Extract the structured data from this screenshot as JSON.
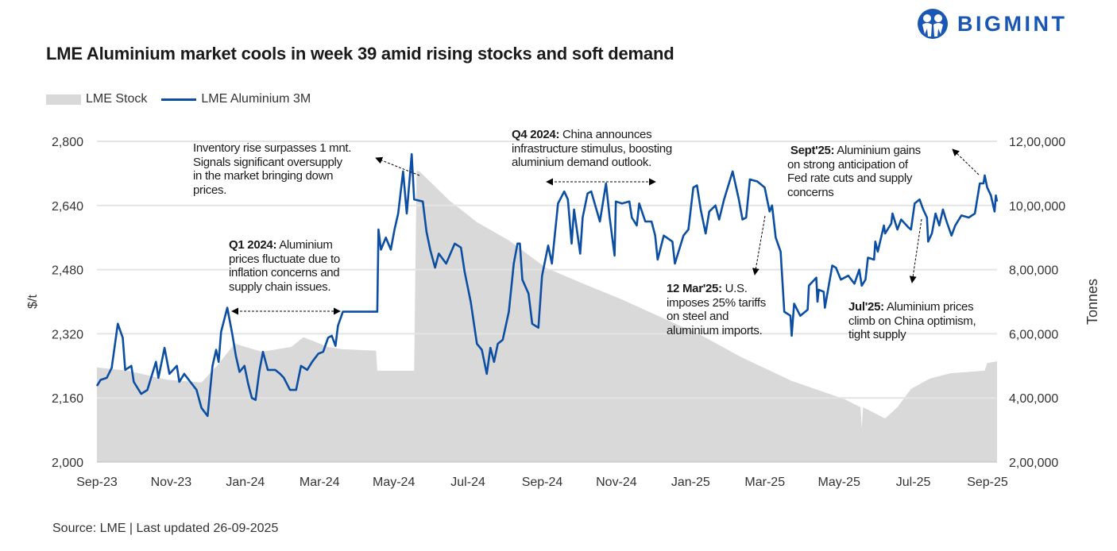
{
  "header": {
    "title": "LME Aluminium market cools in week 39 amid rising stocks and soft demand",
    "logo_text": "BIGMINT"
  },
  "footer": {
    "source": "Source: LME | Last updated 26-09-2025"
  },
  "colors": {
    "price_line": "#0b4ea2",
    "stock_area": "#d9d9d9",
    "grid": "#e4e4e4",
    "brand": "#1a56b4"
  },
  "annotations": [
    {
      "bold": "",
      "text": [
        "Inventory rise surpasses 1 mnt.",
        "Signals significant oversupply",
        "in the market bringing down",
        "prices."
      ]
    },
    {
      "bold": "Q1 2024:",
      "text": [
        " Aluminium",
        "prices fluctuate due to",
        "inflation concerns and",
        "supply chain issues."
      ]
    },
    {
      "bold": "Q4 2024:",
      "text": [
        " China announces",
        "infrastructure stimulus, boosting",
        "aluminium demand outlook."
      ]
    },
    {
      "bold": "12 Mar'25:",
      "text": [
        " U.S.",
        "imposes 25% tariffs",
        "on steel and",
        "aluminium imports."
      ]
    },
    {
      "bold": "Sept'25:",
      "text": [
        " Aluminium gains",
        "on strong anticipation of",
        "Fed rate cuts and supply",
        "concerns"
      ]
    },
    {
      "bold": "Jul'25:",
      "text": [
        " Aluminium prices",
        "climb on China optimism,",
        "tight supply"
      ]
    }
  ],
  "chart_data": {
    "type": "line+area",
    "title": "LME Aluminium market cools in week 39 amid rising stocks and soft demand",
    "legend": {
      "position": "top-left",
      "entries": [
        "LME Stock",
        "LME Aluminium 3M"
      ]
    },
    "grid": true,
    "x_tick_labels": [
      "Sep-23",
      "Nov-23",
      "Jan-24",
      "Mar-24",
      "May-24",
      "Jul-24",
      "Sep-24",
      "Nov-24",
      "Jan-25",
      "Mar-25",
      "May-25",
      "Jul-25",
      "Sep-25"
    ],
    "y_left": {
      "label": "$/t",
      "range": [
        2000,
        2800
      ],
      "ticks": [
        "2,000",
        "2,160",
        "2,320",
        "2,480",
        "2,640",
        "2,800"
      ]
    },
    "y_right": {
      "label": "Tonnes",
      "range": [
        200000,
        1200000
      ],
      "ticks": [
        "2,00,000",
        "4,00,000",
        "6,00,000",
        "8,00,000",
        "10,00,000",
        "12,00,000"
      ]
    },
    "series": [
      {
        "name": "LME Aluminium 3M",
        "axis": "left",
        "kind": "line",
        "points": [
          [
            "2023-09-25",
            2190
          ],
          [
            "2023-09-28",
            2205
          ],
          [
            "2023-10-03",
            2210
          ],
          [
            "2023-10-07",
            2235
          ],
          [
            "2023-10-12",
            2345
          ],
          [
            "2023-10-16",
            2310
          ],
          [
            "2023-10-18",
            2230
          ],
          [
            "2023-10-23",
            2240
          ],
          [
            "2023-10-25",
            2200
          ],
          [
            "2023-10-31",
            2170
          ],
          [
            "2023-11-05",
            2180
          ],
          [
            "2023-11-12",
            2250
          ],
          [
            "2023-11-14",
            2210
          ],
          [
            "2023-11-19",
            2285
          ],
          [
            "2023-11-23",
            2220
          ],
          [
            "2023-11-29",
            2240
          ],
          [
            "2023-12-01",
            2200
          ],
          [
            "2023-12-05",
            2220
          ],
          [
            "2023-12-10",
            2200
          ],
          [
            "2023-12-15",
            2180
          ],
          [
            "2023-12-19",
            2135
          ],
          [
            "2023-12-24",
            2115
          ],
          [
            "2023-12-28",
            2240
          ],
          [
            "2023-12-31",
            2280
          ],
          [
            "2024-01-02",
            2250
          ],
          [
            "2024-01-04",
            2325
          ],
          [
            "2024-01-09",
            2385
          ],
          [
            "2024-01-13",
            2320
          ],
          [
            "2024-01-16",
            2265
          ],
          [
            "2024-01-19",
            2225
          ],
          [
            "2024-01-23",
            2240
          ],
          [
            "2024-01-26",
            2195
          ],
          [
            "2024-01-29",
            2160
          ],
          [
            "2024-02-01",
            2155
          ],
          [
            "2024-02-04",
            2225
          ],
          [
            "2024-02-07",
            2275
          ],
          [
            "2024-02-11",
            2230
          ],
          [
            "2024-02-17",
            2230
          ],
          [
            "2024-02-21",
            2220
          ],
          [
            "2024-02-24",
            2210
          ],
          [
            "2024-02-29",
            2180
          ],
          [
            "2024-03-05",
            2180
          ],
          [
            "2024-03-09",
            2240
          ],
          [
            "2024-03-14",
            2230
          ],
          [
            "2024-03-18",
            2250
          ],
          [
            "2024-03-23",
            2270
          ],
          [
            "2024-03-27",
            2275
          ],
          [
            "2024-03-31",
            2310
          ],
          [
            "2024-04-03",
            2315
          ],
          [
            "2024-04-06",
            2290
          ],
          [
            "2024-04-08",
            2340
          ],
          [
            "2024-04-12",
            2375
          ],
          [
            "2024-05-10",
            2375
          ],
          [
            "2024-05-11",
            2580
          ],
          [
            "2024-05-13",
            2530
          ],
          [
            "2024-05-17",
            2560
          ],
          [
            "2024-05-21",
            2530
          ],
          [
            "2024-05-24",
            2580
          ],
          [
            "2024-05-27",
            2620
          ],
          [
            "2024-05-31",
            2725
          ],
          [
            "2024-06-03",
            2620
          ],
          [
            "2024-06-07",
            2768
          ],
          [
            "2024-06-09",
            2655
          ],
          [
            "2024-06-16",
            2650
          ],
          [
            "2024-06-19",
            2575
          ],
          [
            "2024-06-22",
            2530
          ],
          [
            "2024-06-26",
            2485
          ],
          [
            "2024-06-29",
            2520
          ],
          [
            "2024-07-05",
            2495
          ],
          [
            "2024-07-12",
            2545
          ],
          [
            "2024-07-17",
            2535
          ],
          [
            "2024-07-20",
            2475
          ],
          [
            "2024-07-25",
            2400
          ],
          [
            "2024-07-30",
            2295
          ],
          [
            "2024-08-03",
            2280
          ],
          [
            "2024-08-07",
            2220
          ],
          [
            "2024-08-10",
            2285
          ],
          [
            "2024-08-13",
            2250
          ],
          [
            "2024-08-16",
            2295
          ],
          [
            "2024-08-20",
            2305
          ],
          [
            "2024-08-25",
            2375
          ],
          [
            "2024-08-29",
            2495
          ],
          [
            "2024-09-01",
            2545
          ],
          [
            "2024-09-03",
            2545
          ],
          [
            "2024-09-05",
            2455
          ],
          [
            "2024-09-10",
            2420
          ],
          [
            "2024-09-13",
            2345
          ],
          [
            "2024-09-18",
            2335
          ],
          [
            "2024-09-21",
            2465
          ],
          [
            "2024-09-26",
            2540
          ],
          [
            "2024-09-29",
            2495
          ],
          [
            "2024-10-04",
            2645
          ],
          [
            "2024-10-09",
            2675
          ],
          [
            "2024-10-12",
            2655
          ],
          [
            "2024-10-15",
            2545
          ],
          [
            "2024-10-17",
            2630
          ],
          [
            "2024-10-22",
            2520
          ],
          [
            "2024-10-24",
            2610
          ],
          [
            "2024-10-28",
            2670
          ],
          [
            "2024-10-31",
            2675
          ],
          [
            "2024-11-07",
            2600
          ],
          [
            "2024-11-12",
            2695
          ],
          [
            "2024-11-15",
            2610
          ],
          [
            "2024-11-19",
            2515
          ],
          [
            "2024-11-20",
            2650
          ],
          [
            "2024-11-25",
            2645
          ],
          [
            "2024-12-01",
            2650
          ],
          [
            "2024-12-03",
            2610
          ],
          [
            "2024-12-07",
            2590
          ],
          [
            "2024-12-09",
            2645
          ],
          [
            "2024-12-14",
            2600
          ],
          [
            "2024-12-19",
            2600
          ],
          [
            "2024-12-22",
            2565
          ],
          [
            "2024-12-24",
            2505
          ],
          [
            "2024-12-29",
            2565
          ],
          [
            "2025-01-05",
            2550
          ],
          [
            "2025-01-07",
            2495
          ],
          [
            "2025-01-14",
            2565
          ],
          [
            "2025-01-18",
            2580
          ],
          [
            "2025-01-22",
            2685
          ],
          [
            "2025-01-25",
            2690
          ],
          [
            "2025-01-28",
            2630
          ],
          [
            "2025-02-01",
            2570
          ],
          [
            "2025-02-04",
            2625
          ],
          [
            "2025-02-09",
            2640
          ],
          [
            "2025-02-12",
            2605
          ],
          [
            "2025-02-16",
            2655
          ],
          [
            "2025-02-23",
            2725
          ],
          [
            "2025-02-28",
            2655
          ],
          [
            "2025-03-03",
            2605
          ],
          [
            "2025-03-06",
            2610
          ],
          [
            "2025-03-09",
            2705
          ],
          [
            "2025-03-15",
            2700
          ],
          [
            "2025-03-21",
            2685
          ],
          [
            "2025-03-23",
            2655
          ],
          [
            "2025-03-25",
            2625
          ],
          [
            "2025-03-27",
            2640
          ],
          [
            "2025-03-30",
            2560
          ],
          [
            "2025-04-03",
            2525
          ],
          [
            "2025-04-06",
            2375
          ],
          [
            "2025-04-11",
            2365
          ],
          [
            "2025-04-12",
            2315
          ],
          [
            "2025-04-14",
            2395
          ],
          [
            "2025-04-19",
            2365
          ],
          [
            "2025-04-25",
            2380
          ],
          [
            "2025-04-26",
            2440
          ],
          [
            "2025-05-02",
            2460
          ],
          [
            "2025-05-03",
            2400
          ],
          [
            "2025-05-04",
            2430
          ],
          [
            "2025-05-08",
            2425
          ],
          [
            "2025-05-09",
            2385
          ],
          [
            "2025-05-15",
            2490
          ],
          [
            "2025-05-18",
            2485
          ],
          [
            "2025-05-22",
            2455
          ],
          [
            "2025-05-28",
            2465
          ],
          [
            "2025-06-02",
            2445
          ],
          [
            "2025-06-06",
            2480
          ],
          [
            "2025-06-08",
            2440
          ],
          [
            "2025-06-11",
            2455
          ],
          [
            "2025-06-13",
            2510
          ],
          [
            "2025-06-18",
            2505
          ],
          [
            "2025-06-19",
            2550
          ],
          [
            "2025-06-21",
            2525
          ],
          [
            "2025-06-26",
            2590
          ],
          [
            "2025-06-27",
            2570
          ],
          [
            "2025-07-02",
            2595
          ],
          [
            "2025-07-03",
            2620
          ],
          [
            "2025-07-07",
            2580
          ],
          [
            "2025-07-10",
            2605
          ],
          [
            "2025-07-16",
            2585
          ],
          [
            "2025-07-18",
            2580
          ],
          [
            "2025-07-21",
            2645
          ],
          [
            "2025-07-25",
            2655
          ],
          [
            "2025-07-28",
            2630
          ],
          [
            "2025-07-31",
            2610
          ],
          [
            "2025-08-01",
            2550
          ],
          [
            "2025-08-04",
            2570
          ],
          [
            "2025-08-07",
            2620
          ],
          [
            "2025-08-10",
            2590
          ],
          [
            "2025-08-13",
            2630
          ],
          [
            "2025-08-16",
            2600
          ],
          [
            "2025-08-20",
            2565
          ],
          [
            "2025-08-23",
            2590
          ],
          [
            "2025-08-28",
            2615
          ],
          [
            "2025-09-03",
            2610
          ],
          [
            "2025-09-08",
            2620
          ],
          [
            "2025-09-12",
            2695
          ],
          [
            "2025-09-15",
            2695
          ],
          [
            "2025-09-16",
            2715
          ],
          [
            "2025-09-18",
            2685
          ],
          [
            "2025-09-21",
            2665
          ],
          [
            "2025-09-24",
            2625
          ],
          [
            "2025-09-25",
            2665
          ],
          [
            "2025-09-26",
            2650
          ]
        ]
      },
      {
        "name": "LME Stock",
        "axis": "right",
        "kind": "area",
        "points": [
          [
            "2023-09-25",
            495000
          ],
          [
            "2023-10-20",
            485000
          ],
          [
            "2023-11-21",
            457000
          ],
          [
            "2023-12-19",
            448000
          ],
          [
            "2024-01-01",
            502000
          ],
          [
            "2024-01-15",
            569000
          ],
          [
            "2024-02-06",
            544000
          ],
          [
            "2024-03-01",
            559000
          ],
          [
            "2024-03-11",
            589000
          ],
          [
            "2024-03-31",
            559000
          ],
          [
            "2024-04-11",
            552000
          ],
          [
            "2024-05-09",
            547000
          ],
          [
            "2024-05-10",
            485000
          ],
          [
            "2024-06-09",
            485000
          ],
          [
            "2024-06-11",
            1108000
          ],
          [
            "2024-06-13",
            1108000
          ],
          [
            "2024-07-08",
            1014000
          ],
          [
            "2024-07-30",
            948000
          ],
          [
            "2024-08-25",
            891000
          ],
          [
            "2024-09-24",
            806000
          ],
          [
            "2024-10-24",
            757000
          ],
          [
            "2024-11-25",
            707000
          ],
          [
            "2024-12-27",
            651000
          ],
          [
            "2025-01-29",
            594000
          ],
          [
            "2025-03-02",
            527000
          ],
          [
            "2025-04-12",
            453000
          ],
          [
            "2025-05-25",
            396000
          ],
          [
            "2025-06-07",
            371000
          ],
          [
            "2025-06-08",
            304000
          ],
          [
            "2025-06-09",
            371000
          ],
          [
            "2025-06-27",
            336000
          ],
          [
            "2025-07-07",
            371000
          ],
          [
            "2025-07-18",
            428000
          ],
          [
            "2025-08-02",
            460000
          ],
          [
            "2025-08-19",
            477000
          ],
          [
            "2025-09-16",
            485000
          ],
          [
            "2025-09-18",
            509000
          ],
          [
            "2025-09-26",
            514000
          ]
        ]
      }
    ]
  }
}
